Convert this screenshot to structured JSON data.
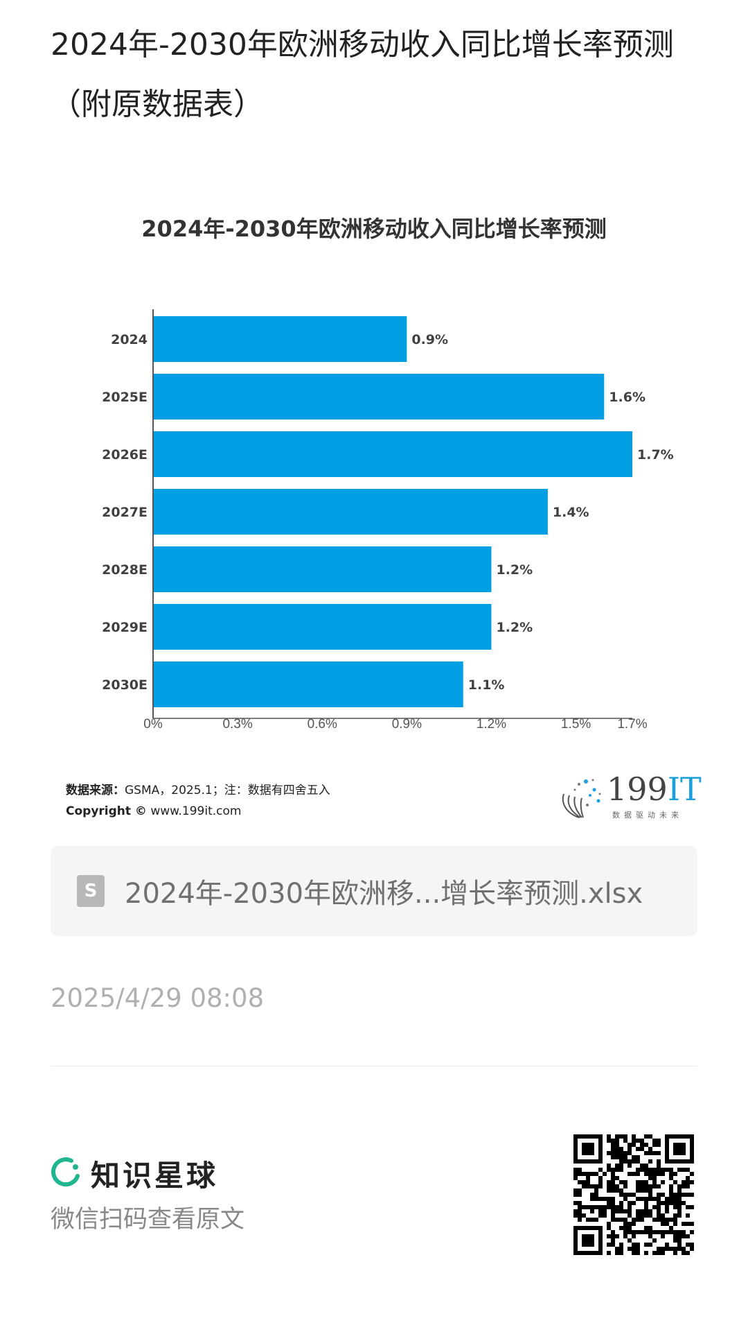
{
  "page": {
    "title": "2024年-2030年欧洲移动收入同比增长率预测（附原数据表）"
  },
  "chart_data": {
    "type": "bar",
    "orientation": "horizontal",
    "title": "2024年-2030年欧洲移动收入同比增长率预测",
    "categories": [
      "2024",
      "2025E",
      "2026E",
      "2027E",
      "2028E",
      "2029E",
      "2030E"
    ],
    "values": [
      0.9,
      1.6,
      1.7,
      1.4,
      1.2,
      1.2,
      1.1
    ],
    "value_labels": [
      "0.9%",
      "1.6%",
      "1.7%",
      "1.4%",
      "1.2%",
      "1.2%",
      "1.1%"
    ],
    "x_ticks": [
      0,
      0.3,
      0.6,
      0.9,
      1.2,
      1.5,
      1.7
    ],
    "x_tick_labels": [
      "0%",
      "0.3%",
      "0.6%",
      "0.9%",
      "1.2%",
      "1.5%",
      "1.7%"
    ],
    "xlim": [
      0,
      1.7
    ],
    "unit": "%",
    "xlabel": "",
    "ylabel": "",
    "grid": false,
    "bar_color": "#009FE3"
  },
  "source": {
    "label": "数据来源：",
    "text": "GSMA，2025.1；注：数据有四舍五入",
    "copyright_label": "Copyright ©",
    "copyright_url": "www.199it.com"
  },
  "logo": {
    "text_a": "199",
    "text_b": "IT",
    "slogan": "数据驱动未来"
  },
  "file": {
    "icon_letter": "S",
    "name": "2024年-2030年欧洲移...增长率预测.xlsx"
  },
  "meta": {
    "date": "2025/4/29 08:08"
  },
  "footer": {
    "brand": "知识星球",
    "scan_text": "微信扫码查看原文",
    "brand_color": "#1fb58f"
  }
}
